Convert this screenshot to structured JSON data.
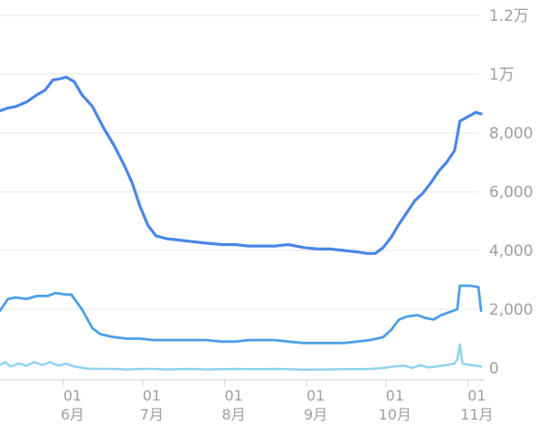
{
  "chart_data": {
    "type": "line",
    "y_axis_position": "right",
    "ylim": [
      -500,
      12000
    ],
    "y_ticks": [
      {
        "value": 12000,
        "label": "1.2万"
      },
      {
        "value": 10000,
        "label": "1万"
      },
      {
        "value": 8000,
        "label": "8,000"
      },
      {
        "value": 6000,
        "label": "6,000"
      },
      {
        "value": 4000,
        "label": "4,000"
      },
      {
        "value": 2000,
        "label": "2,000"
      },
      {
        "value": 0,
        "label": "0"
      }
    ],
    "xlim": [
      "2019-05-08",
      "2019-11-07"
    ],
    "x_ticks": [
      {
        "date": "2019-06-01",
        "day": "01",
        "month": "6月"
      },
      {
        "date": "2019-07-01",
        "day": "01",
        "month": "7月"
      },
      {
        "date": "2019-08-01",
        "day": "01",
        "month": "8月"
      },
      {
        "date": "2019-09-01",
        "day": "01",
        "month": "9月"
      },
      {
        "date": "2019-10-01",
        "day": "01",
        "month": "10月"
      },
      {
        "date": "2019-11-01",
        "day": "01",
        "month": "11月"
      }
    ],
    "grid": true,
    "series": [
      {
        "color": "#4a86e8",
        "width": 3.2,
        "points": [
          [
            "2019-05-08",
            8750
          ],
          [
            "2019-05-11",
            8850
          ],
          [
            "2019-05-14",
            8900
          ],
          [
            "2019-05-18",
            9050
          ],
          [
            "2019-05-22",
            9300
          ],
          [
            "2019-05-25",
            9450
          ],
          [
            "2019-05-28",
            9800
          ],
          [
            "2019-05-31",
            9850
          ],
          [
            "2019-06-02",
            9900
          ],
          [
            "2019-06-05",
            9750
          ],
          [
            "2019-06-08",
            9300
          ],
          [
            "2019-06-12",
            8900
          ],
          [
            "2019-06-16",
            8200
          ],
          [
            "2019-06-20",
            7600
          ],
          [
            "2019-06-24",
            6900
          ],
          [
            "2019-06-27",
            6300
          ],
          [
            "2019-06-30",
            5500
          ],
          [
            "2019-07-03",
            4850
          ],
          [
            "2019-07-06",
            4500
          ],
          [
            "2019-07-10",
            4400
          ],
          [
            "2019-07-15",
            4350
          ],
          [
            "2019-07-20",
            4300
          ],
          [
            "2019-07-25",
            4250
          ],
          [
            "2019-07-31",
            4200
          ],
          [
            "2019-08-05",
            4200
          ],
          [
            "2019-08-10",
            4150
          ],
          [
            "2019-08-15",
            4150
          ],
          [
            "2019-08-20",
            4150
          ],
          [
            "2019-08-25",
            4200
          ],
          [
            "2019-08-31",
            4100
          ],
          [
            "2019-09-05",
            4050
          ],
          [
            "2019-09-10",
            4050
          ],
          [
            "2019-09-15",
            4000
          ],
          [
            "2019-09-20",
            3950
          ],
          [
            "2019-09-24",
            3900
          ],
          [
            "2019-09-27",
            3900
          ],
          [
            "2019-09-30",
            4100
          ],
          [
            "2019-10-03",
            4450
          ],
          [
            "2019-10-06",
            4900
          ],
          [
            "2019-10-09",
            5300
          ],
          [
            "2019-10-12",
            5700
          ],
          [
            "2019-10-15",
            5950
          ],
          [
            "2019-10-18",
            6300
          ],
          [
            "2019-10-21",
            6700
          ],
          [
            "2019-10-24",
            7000
          ],
          [
            "2019-10-27",
            7400
          ],
          [
            "2019-10-28",
            7900
          ],
          [
            "2019-10-29",
            8400
          ],
          [
            "2019-11-01",
            8550
          ],
          [
            "2019-11-04",
            8700
          ],
          [
            "2019-11-06",
            8650
          ]
        ]
      },
      {
        "color": "#4b9fe6",
        "width": 2.8,
        "points": [
          [
            "2019-05-08",
            1950
          ],
          [
            "2019-05-11",
            2350
          ],
          [
            "2019-05-14",
            2400
          ],
          [
            "2019-05-18",
            2350
          ],
          [
            "2019-05-22",
            2450
          ],
          [
            "2019-05-26",
            2450
          ],
          [
            "2019-05-29",
            2550
          ],
          [
            "2019-06-02",
            2500
          ],
          [
            "2019-06-04",
            2500
          ],
          [
            "2019-06-08",
            2000
          ],
          [
            "2019-06-12",
            1350
          ],
          [
            "2019-06-15",
            1150
          ],
          [
            "2019-06-20",
            1050
          ],
          [
            "2019-06-25",
            1000
          ],
          [
            "2019-06-30",
            1000
          ],
          [
            "2019-07-05",
            950
          ],
          [
            "2019-07-10",
            950
          ],
          [
            "2019-07-15",
            950
          ],
          [
            "2019-07-20",
            950
          ],
          [
            "2019-07-25",
            950
          ],
          [
            "2019-07-31",
            900
          ],
          [
            "2019-08-05",
            900
          ],
          [
            "2019-08-10",
            950
          ],
          [
            "2019-08-15",
            950
          ],
          [
            "2019-08-20",
            950
          ],
          [
            "2019-08-25",
            900
          ],
          [
            "2019-08-31",
            850
          ],
          [
            "2019-09-05",
            850
          ],
          [
            "2019-09-10",
            850
          ],
          [
            "2019-09-15",
            850
          ],
          [
            "2019-09-20",
            900
          ],
          [
            "2019-09-25",
            950
          ],
          [
            "2019-09-30",
            1050
          ],
          [
            "2019-10-03",
            1300
          ],
          [
            "2019-10-06",
            1650
          ],
          [
            "2019-10-09",
            1750
          ],
          [
            "2019-10-13",
            1800
          ],
          [
            "2019-10-16",
            1700
          ],
          [
            "2019-10-19",
            1650
          ],
          [
            "2019-10-22",
            1800
          ],
          [
            "2019-10-25",
            1900
          ],
          [
            "2019-10-28",
            2000
          ],
          [
            "2019-10-29",
            2800
          ],
          [
            "2019-11-02",
            2800
          ],
          [
            "2019-11-05",
            2750
          ],
          [
            "2019-11-06",
            1950
          ]
        ]
      },
      {
        "color": "#8fd3ec",
        "width": 2.5,
        "points": [
          [
            "2019-05-08",
            100
          ],
          [
            "2019-05-10",
            200
          ],
          [
            "2019-05-12",
            50
          ],
          [
            "2019-05-15",
            150
          ],
          [
            "2019-05-18",
            80
          ],
          [
            "2019-05-21",
            200
          ],
          [
            "2019-05-24",
            100
          ],
          [
            "2019-05-27",
            200
          ],
          [
            "2019-05-30",
            80
          ],
          [
            "2019-06-02",
            150
          ],
          [
            "2019-06-05",
            50
          ],
          [
            "2019-06-10",
            -20
          ],
          [
            "2019-06-15",
            -30
          ],
          [
            "2019-06-20",
            -30
          ],
          [
            "2019-06-25",
            -50
          ],
          [
            "2019-06-30",
            -30
          ],
          [
            "2019-07-05",
            -30
          ],
          [
            "2019-07-10",
            -50
          ],
          [
            "2019-07-15",
            -40
          ],
          [
            "2019-07-20",
            -30
          ],
          [
            "2019-07-25",
            -50
          ],
          [
            "2019-07-31",
            -40
          ],
          [
            "2019-08-05",
            -30
          ],
          [
            "2019-08-10",
            -40
          ],
          [
            "2019-08-15",
            -40
          ],
          [
            "2019-08-20",
            -30
          ],
          [
            "2019-08-25",
            -40
          ],
          [
            "2019-08-31",
            -60
          ],
          [
            "2019-09-05",
            -50
          ],
          [
            "2019-09-10",
            -50
          ],
          [
            "2019-09-15",
            -40
          ],
          [
            "2019-09-20",
            -40
          ],
          [
            "2019-09-25",
            -30
          ],
          [
            "2019-09-30",
            0
          ],
          [
            "2019-10-04",
            50
          ],
          [
            "2019-10-08",
            80
          ],
          [
            "2019-10-11",
            0
          ],
          [
            "2019-10-14",
            100
          ],
          [
            "2019-10-17",
            20
          ],
          [
            "2019-10-20",
            50
          ],
          [
            "2019-10-24",
            100
          ],
          [
            "2019-10-27",
            150
          ],
          [
            "2019-10-28",
            300
          ],
          [
            "2019-10-29",
            800
          ],
          [
            "2019-10-30",
            150
          ],
          [
            "2019-11-02",
            100
          ],
          [
            "2019-11-04",
            80
          ],
          [
            "2019-11-06",
            50
          ]
        ]
      }
    ]
  }
}
